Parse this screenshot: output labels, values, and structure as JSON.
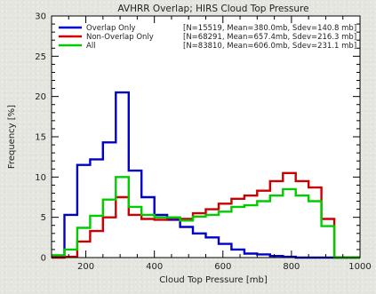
{
  "chart_data": {
    "type": "line",
    "title": "AVHRR Overlap; HIRS Cloud Top Pressure",
    "xlabel": "Cloud Top Pressure [mb]",
    "ylabel": "Frequency [%]",
    "xlim": [
      100,
      1000
    ],
    "ylim": [
      0,
      30
    ],
    "xticks": [
      200,
      400,
      600,
      800,
      1000
    ],
    "yticks": [
      0,
      5,
      10,
      15,
      20,
      25,
      30
    ],
    "grid": false,
    "legend_placement": "top",
    "bin_edges": [
      100,
      137.5,
      175,
      212.5,
      250,
      287.5,
      325,
      362.5,
      400,
      437.5,
      475,
      512.5,
      550,
      587.5,
      625,
      662.5,
      700,
      737.5,
      775,
      812.5,
      850,
      887.5,
      925,
      962.5,
      1000
    ],
    "series": [
      {
        "name": "Overlap Only",
        "color": "#0000cc",
        "stats": "[N=15519,  Mean=380.0mb,  Sdev=140.8 mb]",
        "values": [
          0.2,
          5.3,
          11.5,
          12.2,
          14.3,
          20.5,
          10.8,
          7.5,
          5.3,
          4.7,
          3.8,
          3.0,
          2.5,
          1.7,
          1.0,
          0.5,
          0.4,
          0.2,
          0.1,
          0.0,
          0.0,
          0.0,
          0.0,
          0.0
        ]
      },
      {
        "name": "Non-Overlap Only",
        "color": "#cc0000",
        "stats": "[N=68291, Mean=657.4mb, Sdev=216.3 mb]",
        "values": [
          0.0,
          0.1,
          2.0,
          3.3,
          5.0,
          7.5,
          5.3,
          4.8,
          4.7,
          4.9,
          4.8,
          5.5,
          6.0,
          6.7,
          7.3,
          7.7,
          8.3,
          9.5,
          10.5,
          9.5,
          8.7,
          4.8,
          0.0,
          0.0
        ]
      },
      {
        "name": "All",
        "color": "#00cc00",
        "stats": "[N=83810, Mean=606.0mb, Sdev=231.1 mb]",
        "values": [
          0.3,
          1.0,
          3.7,
          5.2,
          7.2,
          10.0,
          6.3,
          5.3,
          5.0,
          5.0,
          4.6,
          5.1,
          5.3,
          5.7,
          6.3,
          6.5,
          7.0,
          7.7,
          8.5,
          7.7,
          7.0,
          3.9,
          0.0,
          0.0
        ]
      }
    ]
  }
}
